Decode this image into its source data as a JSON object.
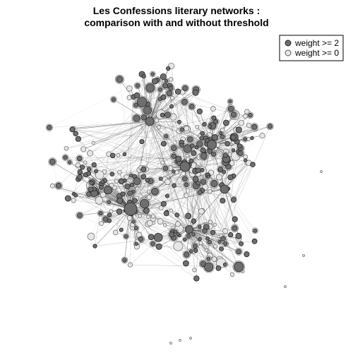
{
  "title": {
    "line1": "Les Confessions literary networks :",
    "line2": "comparison with and without threshold"
  },
  "legend": {
    "items": [
      {
        "label": "weight >= 2",
        "fill": "#6e6e6e",
        "stroke": "#222222"
      },
      {
        "label": "weight >= 0",
        "fill": "#e6e6e6",
        "stroke": "#555555"
      }
    ]
  },
  "colors": {
    "edge_dark": "#4a4a4a",
    "edge_light": "#bdbdbd",
    "node_dark_fill": "#6e6e6e",
    "node_light_fill": "#e6e6e6"
  }
}
